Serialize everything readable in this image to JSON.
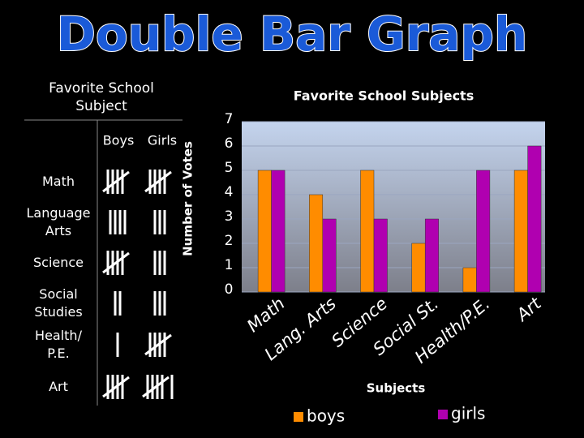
{
  "header": {
    "title": "Double Bar Graph"
  },
  "table": {
    "title": "Favorite School Subject",
    "columns": [
      "Boys",
      "Girls"
    ],
    "rows": [
      "Math",
      "Language Arts",
      "Science",
      "Social Studies",
      "Health/ P.E.",
      "Art"
    ]
  },
  "chart_data": {
    "type": "bar",
    "title": "Favorite School Subjects",
    "x_label": "Subjects",
    "y_label": "Number of Votes",
    "categories": [
      "Math",
      "Lang. Arts",
      "Science",
      "Social St.",
      "Health/P.E.",
      "Art"
    ],
    "series": [
      {
        "name": "boys",
        "color": "#ff8c00",
        "values": [
          5,
          4,
          5,
          2,
          1,
          5
        ]
      },
      {
        "name": "girls",
        "color": "#b000b0",
        "values": [
          5,
          3,
          3,
          3,
          5,
          6
        ]
      }
    ],
    "ylim": [
      0,
      7
    ],
    "yticks": [
      0,
      1,
      2,
      3,
      4,
      5,
      6,
      7
    ],
    "grid": true
  }
}
